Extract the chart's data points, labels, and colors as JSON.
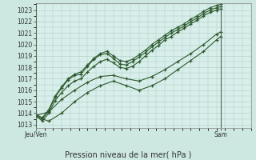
{
  "title": "Pression niveau de la mer( hPa )",
  "ylabel_ticks": [
    1013,
    1014,
    1015,
    1016,
    1017,
    1018,
    1019,
    1020,
    1021,
    1022,
    1023
  ],
  "ylim": [
    1012.7,
    1023.6
  ],
  "xlim": [
    0,
    1.0
  ],
  "bg_color": "#cce8e0",
  "plot_bg": "#d8eeea",
  "grid_color": "#aaccc4",
  "line_color": "#2d5a2d",
  "marker_color": "#2d5a2d",
  "x_ticks": [
    0.0,
    0.86
  ],
  "x_labels": [
    "Jeu/Ven",
    "Sam"
  ],
  "vline_x": [
    0.0,
    0.86
  ],
  "lines": [
    {
      "x": [
        0.0,
        0.03,
        0.06,
        0.09,
        0.12,
        0.15,
        0.18,
        0.21,
        0.24,
        0.27,
        0.3,
        0.33,
        0.36,
        0.39,
        0.42,
        0.45,
        0.48,
        0.51,
        0.54,
        0.57,
        0.6,
        0.63,
        0.66,
        0.69,
        0.72,
        0.75,
        0.78,
        0.81,
        0.84,
        0.86
      ],
      "y": [
        1013.8,
        1013.5,
        1014.2,
        1015.4,
        1016.2,
        1016.9,
        1017.3,
        1017.4,
        1018.1,
        1018.7,
        1019.1,
        1019.2,
        1018.8,
        1018.3,
        1018.2,
        1018.5,
        1018.9,
        1019.3,
        1019.8,
        1020.2,
        1020.6,
        1021.0,
        1021.3,
        1021.6,
        1022.0,
        1022.3,
        1022.7,
        1023.0,
        1023.2,
        1023.3
      ]
    },
    {
      "x": [
        0.0,
        0.03,
        0.06,
        0.09,
        0.12,
        0.15,
        0.18,
        0.21,
        0.24,
        0.27,
        0.3,
        0.33,
        0.36,
        0.39,
        0.42,
        0.45,
        0.48,
        0.51,
        0.54,
        0.57,
        0.6,
        0.63,
        0.66,
        0.69,
        0.72,
        0.75,
        0.78,
        0.81,
        0.84,
        0.86
      ],
      "y": [
        1013.8,
        1013.3,
        1014.0,
        1015.1,
        1015.8,
        1016.4,
        1016.8,
        1017.0,
        1017.6,
        1018.1,
        1018.5,
        1018.7,
        1018.4,
        1018.0,
        1017.9,
        1018.1,
        1018.5,
        1019.0,
        1019.5,
        1019.9,
        1020.4,
        1020.7,
        1021.1,
        1021.4,
        1021.8,
        1022.1,
        1022.5,
        1022.8,
        1023.0,
        1023.1
      ]
    },
    {
      "x": [
        0.0,
        0.03,
        0.06,
        0.09,
        0.12,
        0.15,
        0.18,
        0.21,
        0.24,
        0.27,
        0.3,
        0.33,
        0.36,
        0.39,
        0.42,
        0.45,
        0.48,
        0.51,
        0.54,
        0.57,
        0.6,
        0.63,
        0.66,
        0.69,
        0.72,
        0.75,
        0.78,
        0.81,
        0.84,
        0.86
      ],
      "y": [
        1013.9,
        1013.6,
        1014.3,
        1015.5,
        1016.3,
        1017.0,
        1017.4,
        1017.6,
        1018.2,
        1018.8,
        1019.2,
        1019.4,
        1019.0,
        1018.6,
        1018.5,
        1018.7,
        1019.1,
        1019.5,
        1020.0,
        1020.4,
        1020.8,
        1021.2,
        1021.5,
        1021.8,
        1022.2,
        1022.5,
        1022.9,
        1023.2,
        1023.4,
        1023.5
      ]
    },
    {
      "x": [
        0.0,
        0.06,
        0.12,
        0.18,
        0.24,
        0.3,
        0.36,
        0.42,
        0.48,
        0.54,
        0.6,
        0.66,
        0.72,
        0.78,
        0.84,
        0.86
      ],
      "y": [
        1013.8,
        1014.1,
        1015.2,
        1016.0,
        1016.7,
        1017.2,
        1017.3,
        1017.0,
        1016.8,
        1017.2,
        1017.8,
        1018.5,
        1019.2,
        1020.0,
        1020.9,
        1021.1
      ]
    },
    {
      "x": [
        0.0,
        0.06,
        0.12,
        0.18,
        0.24,
        0.3,
        0.36,
        0.42,
        0.48,
        0.54,
        0.6,
        0.66,
        0.72,
        0.78,
        0.84,
        0.86
      ],
      "y": [
        1013.7,
        1013.3,
        1014.0,
        1015.0,
        1015.8,
        1016.4,
        1016.8,
        1016.4,
        1016.0,
        1016.4,
        1017.0,
        1017.8,
        1018.6,
        1019.4,
        1020.4,
        1020.7
      ]
    }
  ]
}
